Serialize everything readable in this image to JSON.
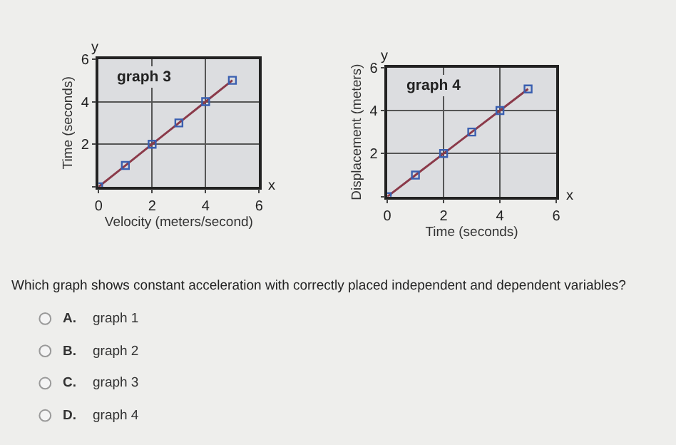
{
  "chart_data": [
    {
      "type": "line",
      "title": "graph 3",
      "xlabel": "Velocity (meters/second)",
      "ylabel": "Time (seconds)",
      "x": [
        0,
        1,
        2,
        3,
        4,
        5
      ],
      "series": [
        {
          "color": "#8b3a4a",
          "values": [
            0,
            1,
            2,
            3,
            4,
            5
          ]
        }
      ],
      "xlim": [
        0,
        6
      ],
      "ylim": [
        0,
        6
      ],
      "xticks": [
        0,
        2,
        4,
        6
      ],
      "yticks": [
        {
          "value": 0,
          "label": null
        },
        2,
        4,
        6
      ],
      "grid": true,
      "marker": "square",
      "line_style": "solid",
      "annotations": [
        "y",
        "x"
      ]
    },
    {
      "type": "line",
      "title": "graph 4",
      "xlabel": "Time (seconds)",
      "ylabel": "Displacement (meters)",
      "x": [
        0,
        1,
        2,
        3,
        4,
        5
      ],
      "series": [
        {
          "color": "#8b3a4a",
          "values": [
            0,
            1,
            2,
            3,
            4,
            5
          ]
        }
      ],
      "xlim": [
        0,
        6
      ],
      "ylim": [
        0,
        6
      ],
      "xticks": [
        0,
        2,
        4,
        6
      ],
      "yticks": [
        {
          "value": 0,
          "label": null
        },
        2,
        4,
        6
      ],
      "grid": true,
      "marker": "square",
      "line_style": "solid",
      "annotations": [
        "y",
        "x"
      ]
    },
    {
      "type": "other",
      "annotations": [
        "Which graph shows constant acceleration with correctly placed independent and dependent variables?",
        "A.",
        "graph 1",
        "B.",
        "graph 2",
        "C.",
        "graph 3",
        "D.",
        "graph 4"
      ]
    }
  ]
}
